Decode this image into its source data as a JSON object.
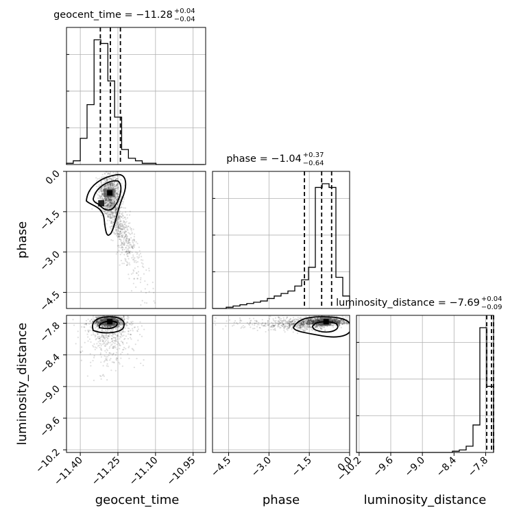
{
  "chart_data": {
    "type": "corner",
    "parameters": [
      "geocent_time",
      "phase",
      "luminosity_distance"
    ],
    "xlabels": [
      "geocent_time",
      "phase",
      "luminosity_distance"
    ],
    "ylabels": [
      "",
      "phase",
      "luminosity_distance"
    ],
    "titles": [
      {
        "param": "geocent_time",
        "text": "geocent_time = −11.28",
        "plus": "+0.04",
        "minus": "−0.04"
      },
      {
        "param": "phase",
        "text": "phase = −1.04",
        "plus": "+0.37",
        "minus": "−0.64"
      },
      {
        "param": "luminosity_distance",
        "text": "luminosity_distance = −7.69",
        "plus": "+0.04",
        "minus": "−0.09"
      }
    ],
    "ranges": {
      "geocent_time": [
        -11.455,
        -10.9
      ],
      "phase": [
        -5.1,
        0.0
      ],
      "luminosity_distance": [
        -10.25,
        -7.65
      ]
    },
    "ticks": {
      "geocent_time": {
        "values": [
          -11.4,
          -11.25,
          -11.1,
          -10.95
        ],
        "labels": [
          "−11.40",
          "−11.25",
          "−11.10",
          "−10.95"
        ]
      },
      "phase": {
        "values": [
          -4.5,
          -3.0,
          -1.5,
          0.0
        ],
        "labels": [
          "−4.5",
          "−3.0",
          "−1.5",
          "0.0"
        ]
      },
      "luminosity_distance": {
        "values": [
          -10.2,
          -9.6,
          -9.0,
          -8.4,
          -7.8
        ],
        "labels": [
          "−10.2",
          "−9.6",
          "−9.0",
          "−8.4",
          "−7.8"
        ]
      }
    },
    "quantiles": {
      "geocent_time": [
        -11.32,
        -11.28,
        -11.24
      ],
      "phase": [
        -1.68,
        -1.04,
        -0.67
      ],
      "luminosity_distance": [
        -7.78,
        -7.69,
        -7.65
      ]
    },
    "histograms": {
      "geocent_time": {
        "edges": [
          -11.455,
          -11.428,
          -11.4,
          -11.373,
          -11.345,
          -11.318,
          -11.29,
          -11.263,
          -11.235,
          -11.208,
          -11.18,
          -11.153,
          -11.125,
          -11.098,
          -11.07,
          -11.043,
          -11.015,
          -10.988,
          -10.96,
          -10.933,
          -10.905
        ],
        "counts": [
          0.01,
          0.03,
          0.21,
          0.48,
          1.0,
          0.97,
          0.67,
          0.38,
          0.12,
          0.05,
          0.03,
          0.01,
          0.01,
          0.0,
          0.0,
          0.0,
          0.0,
          0.0,
          0.0,
          0.0
        ]
      },
      "phase": {
        "edges": [
          -5.1,
          -4.845,
          -4.59,
          -4.335,
          -4.08,
          -3.825,
          -3.57,
          -3.315,
          -3.06,
          -2.805,
          -2.55,
          -2.295,
          -2.04,
          -1.785,
          -1.53,
          -1.275,
          -1.02,
          -0.765,
          -0.51,
          -0.255,
          0.0
        ],
        "counts": [
          0.0,
          0.0,
          0.01,
          0.02,
          0.03,
          0.04,
          0.05,
          0.06,
          0.08,
          0.1,
          0.12,
          0.14,
          0.18,
          0.23,
          0.33,
          0.97,
          1.0,
          0.97,
          0.25,
          0.1
        ]
      },
      "luminosity_distance": {
        "edges": [
          -10.25,
          -10.12,
          -9.99,
          -9.86,
          -9.73,
          -9.6,
          -9.47,
          -9.34,
          -9.21,
          -9.08,
          -8.95,
          -8.82,
          -8.69,
          -8.56,
          -8.43,
          -8.3,
          -8.17,
          -8.04,
          -7.91,
          -7.78,
          -7.65
        ],
        "counts": [
          0.0,
          0.0,
          0.0,
          0.0,
          0.0,
          0.0,
          0.0,
          0.0,
          0.0,
          0.0,
          0.0,
          0.0,
          0.0,
          0.0,
          0.01,
          0.02,
          0.05,
          0.22,
          1.0,
          0.53
        ]
      }
    },
    "joint_peaks": [
      {
        "x": "geocent_time",
        "y": "phase",
        "peak": [
          -11.285,
          -0.8
        ],
        "secondary": [
          -11.315,
          -1.2
        ]
      },
      {
        "x": "geocent_time",
        "y": "luminosity_distance",
        "peak": [
          -11.285,
          -7.77
        ]
      },
      {
        "x": "phase",
        "y": "luminosity_distance",
        "peak": [
          -0.9,
          -7.77
        ]
      }
    ],
    "grid": true,
    "colors": {
      "hist": "#000000",
      "points": "#000000",
      "grid": "#b0b0b0"
    }
  }
}
